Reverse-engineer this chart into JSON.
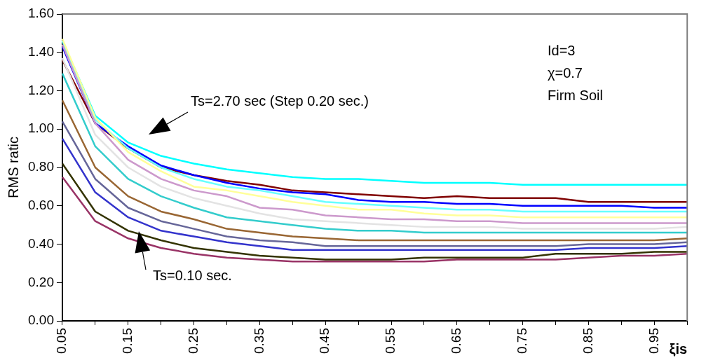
{
  "chart_data": {
    "type": "line",
    "ylabel": "RMS ratic",
    "xlabel": "ξis",
    "categories": [
      "0.05",
      null,
      "0.15",
      null,
      "0.25",
      null,
      "0.35",
      null,
      "0.45",
      null,
      "0.55",
      null,
      "0.65",
      null,
      "0.75",
      null,
      "0.85",
      null,
      "0.95",
      null
    ],
    "ylim": [
      0,
      1.6
    ],
    "yticks": [
      {
        "value": 0,
        "label": "0.00"
      },
      {
        "value": 0.2,
        "label": "0.20"
      },
      {
        "value": 0.4,
        "label": "0.40"
      },
      {
        "value": 0.6,
        "label": "0.60"
      },
      {
        "value": 0.8,
        "label": "0.80"
      },
      {
        "value": 1,
        "label": "1.00"
      },
      {
        "value": 1.2,
        "label": "1.20"
      },
      {
        "value": 1.4,
        "label": "1.40"
      },
      {
        "value": 1.6,
        "label": "1.60"
      }
    ],
    "grid": false,
    "legend": false,
    "marker": "none",
    "line_style": "solid",
    "series": [
      {
        "color": "#993366",
        "values": [
          0.75,
          0.52,
          0.43,
          0.38,
          0.35,
          0.33,
          0.32,
          0.31,
          0.31,
          0.31,
          0.31,
          0.31,
          0.32,
          0.32,
          0.32,
          0.32,
          0.33,
          0.34,
          0.34,
          0.35
        ]
      },
      {
        "color": "#333300",
        "values": [
          0.82,
          0.57,
          0.47,
          0.42,
          0.38,
          0.36,
          0.34,
          0.33,
          0.32,
          0.32,
          0.32,
          0.33,
          0.33,
          0.33,
          0.33,
          0.35,
          0.35,
          0.35,
          0.36,
          0.36
        ]
      },
      {
        "color": "#3333cc",
        "values": [
          0.95,
          0.67,
          0.54,
          0.47,
          0.44,
          0.41,
          0.39,
          0.37,
          0.37,
          0.37,
          0.37,
          0.37,
          0.37,
          0.37,
          0.37,
          0.37,
          0.38,
          0.38,
          0.38,
          0.39
        ]
      },
      {
        "color": "#666699",
        "values": [
          1.04,
          0.74,
          0.59,
          0.52,
          0.48,
          0.44,
          0.42,
          0.41,
          0.39,
          0.39,
          0.39,
          0.39,
          0.39,
          0.39,
          0.39,
          0.39,
          0.4,
          0.4,
          0.4,
          0.41
        ]
      },
      {
        "color": "#996633",
        "values": [
          1.15,
          0.8,
          0.65,
          0.57,
          0.53,
          0.48,
          0.46,
          0.44,
          0.43,
          0.42,
          0.42,
          0.42,
          0.42,
          0.42,
          0.42,
          0.42,
          0.42,
          0.42,
          0.42,
          0.43
        ]
      },
      {
        "color": "#33cccc",
        "values": [
          1.29,
          0.91,
          0.74,
          0.65,
          0.59,
          0.54,
          0.52,
          0.5,
          0.48,
          0.47,
          0.47,
          0.46,
          0.46,
          0.46,
          0.46,
          0.46,
          0.46,
          0.46,
          0.46,
          0.46
        ]
      },
      {
        "color": "#e3e3e3",
        "values": [
          1.37,
          0.97,
          0.8,
          0.7,
          0.64,
          0.6,
          0.56,
          0.53,
          0.52,
          0.51,
          0.5,
          0.49,
          0.49,
          0.49,
          0.48,
          0.48,
          0.48,
          0.48,
          0.48,
          0.49
        ]
      },
      {
        "color": "#cc99cc",
        "values": [
          1.44,
          1.03,
          0.84,
          0.74,
          0.68,
          0.65,
          0.59,
          0.58,
          0.55,
          0.54,
          0.53,
          0.53,
          0.52,
          0.52,
          0.51,
          0.51,
          0.51,
          0.51,
          0.51,
          0.51
        ]
      },
      {
        "color": "#ffff99",
        "values": [
          1.47,
          1.06,
          0.88,
          0.78,
          0.7,
          0.68,
          0.65,
          0.62,
          0.6,
          0.58,
          0.58,
          0.56,
          0.55,
          0.55,
          0.54,
          0.54,
          0.54,
          0.54,
          0.54,
          0.54
        ]
      },
      {
        "color": "#66ffff",
        "values": [
          1.46,
          1.05,
          0.9,
          0.8,
          0.74,
          0.7,
          0.68,
          0.65,
          0.62,
          0.61,
          0.6,
          0.59,
          0.58,
          0.58,
          0.57,
          0.57,
          0.57,
          0.57,
          0.57,
          0.57
        ]
      },
      {
        "color": "#0000ff",
        "values": [
          1.43,
          1.03,
          0.91,
          0.81,
          0.76,
          0.72,
          0.69,
          0.67,
          0.66,
          0.63,
          0.62,
          0.62,
          0.61,
          0.61,
          0.6,
          0.6,
          0.6,
          0.6,
          0.59,
          0.59
        ]
      },
      {
        "color": "#800000",
        "values": [
          1.36,
          1.03,
          0.9,
          0.8,
          0.76,
          0.73,
          0.71,
          0.68,
          0.67,
          0.66,
          0.65,
          0.64,
          0.65,
          0.64,
          0.64,
          0.64,
          0.62,
          0.62,
          0.62,
          0.62
        ]
      },
      {
        "color": "#00ffff",
        "values": [
          1.46,
          1.07,
          0.93,
          0.86,
          0.82,
          0.79,
          0.77,
          0.75,
          0.74,
          0.74,
          0.73,
          0.72,
          0.72,
          0.72,
          0.71,
          0.71,
          0.71,
          0.71,
          0.71,
          0.71
        ]
      }
    ],
    "annotations": [
      "Ts=2.70 sec (Step 0.20 sec.)",
      "Ts=0.10 sec.",
      "Id=3",
      "χ=0.7",
      "Firm Soil"
    ]
  }
}
